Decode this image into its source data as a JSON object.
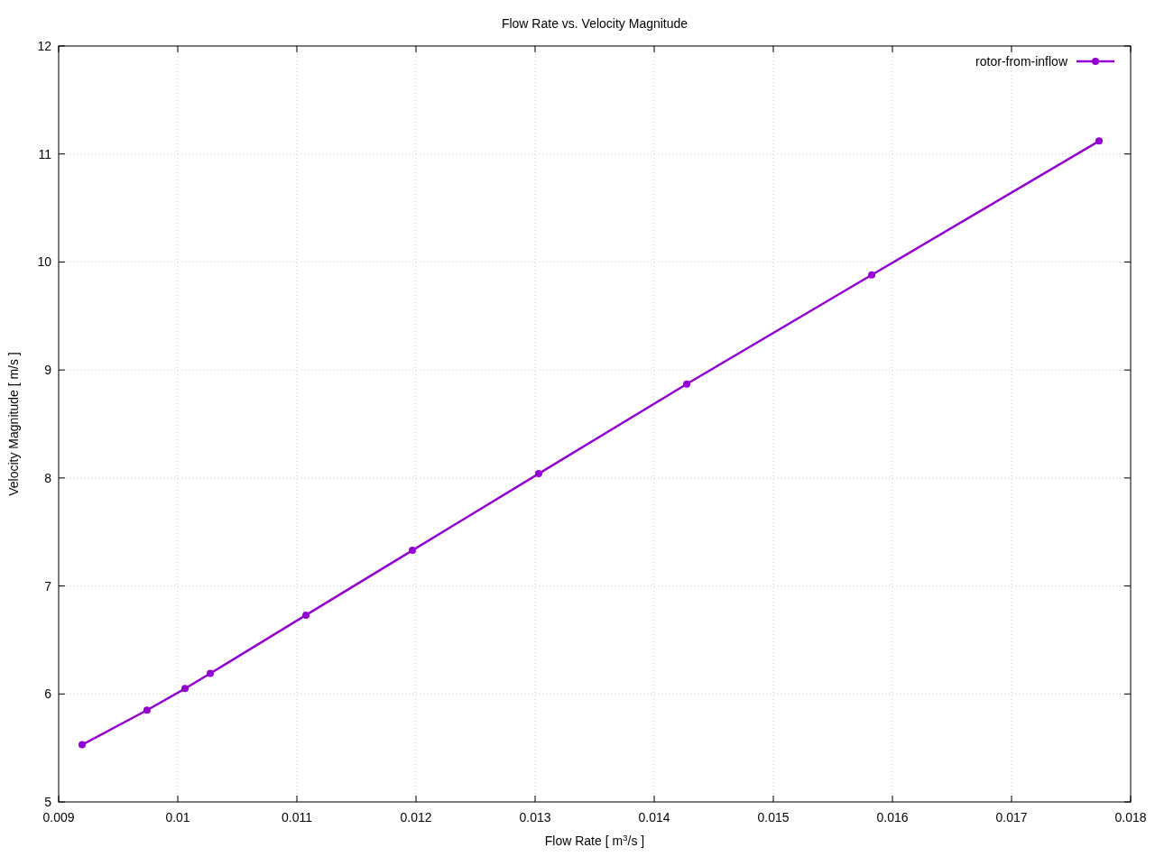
{
  "chart_data": {
    "type": "line",
    "title": "Flow Rate vs. Velocity Magnitude",
    "xlabel": "Flow Rate [ m$^{3}$/s ]",
    "ylabel": "Velocity Magnitude [ m/s ]",
    "x": [
      0.009197,
      0.009742,
      0.010061,
      0.010273,
      0.011076,
      0.01197,
      0.01303,
      0.014273,
      0.015826,
      0.017735
    ],
    "series": [
      {
        "name": "rotor-from-inflow",
        "color": "#9400d3",
        "values": [
          5.53,
          5.85,
          6.05,
          6.19,
          6.73,
          7.33,
          8.04,
          8.87,
          9.88,
          11.12
        ]
      }
    ],
    "xlim": [
      0.009,
      0.018
    ],
    "xticks": [
      0.009,
      0.01,
      0.011,
      0.012,
      0.013,
      0.014,
      0.015,
      0.016,
      0.017,
      0.018
    ],
    "ylim": [
      5,
      12
    ],
    "yticks": [
      5,
      6,
      7,
      8,
      9,
      10,
      11,
      12
    ],
    "grid": true,
    "legend": "top right",
    "marker": "circle",
    "line_style": "solid"
  }
}
